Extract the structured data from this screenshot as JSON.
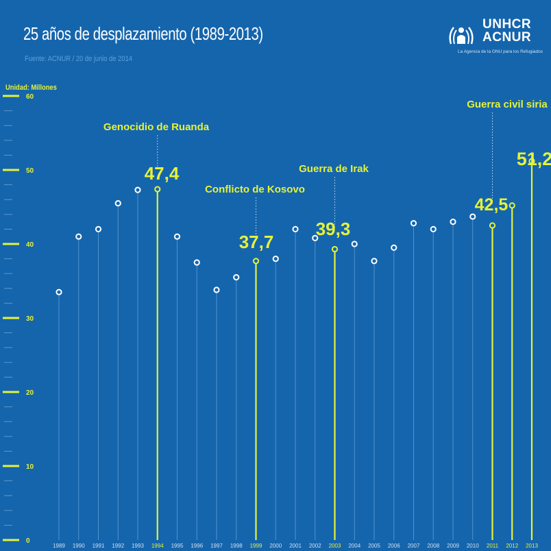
{
  "header": {
    "title": "25 años de desplazamiento (1989-2013)",
    "subtitle": "Fuente: ACNUR / 20 de junio de 2014",
    "unit_label": "Unidad: Millones"
  },
  "logo": {
    "line1": "UNHCR",
    "line2": "ACNUR",
    "tagline": "La Agencia de la ONU para los Refugiados"
  },
  "colors": {
    "background": "#1565ad",
    "highlight": "#e6f238",
    "stem": "#6fa6d8",
    "white": "#ffffff"
  },
  "chart_data": {
    "type": "scatter",
    "title": "25 años de desplazamiento (1989-2013)",
    "ylabel": "Unidad: Millones",
    "ylim": [
      0,
      60
    ],
    "yticks": [
      0,
      10,
      20,
      30,
      40,
      50,
      60
    ],
    "x": [
      "1989",
      "1990",
      "1991",
      "1992",
      "1993",
      "1994",
      "1995",
      "1996",
      "1997",
      "1998",
      "1999",
      "2000",
      "2001",
      "2002",
      "2003",
      "2004",
      "2005",
      "2006",
      "2007",
      "2008",
      "2009",
      "2010",
      "2011",
      "2012",
      "2013"
    ],
    "values": [
      33.5,
      41.0,
      42.0,
      45.5,
      47.3,
      47.4,
      41.0,
      37.5,
      33.8,
      35.5,
      37.7,
      38.0,
      42.0,
      40.8,
      39.3,
      40.0,
      37.7,
      39.5,
      42.8,
      42.0,
      43.0,
      43.7,
      42.5,
      45.2,
      51.2
    ],
    "highlighted": [
      "1994",
      "1999",
      "2003",
      "2011",
      "2012",
      "2013"
    ],
    "data_labels": [
      {
        "year": "1994",
        "text": "47,4"
      },
      {
        "year": "1999",
        "text": "37,7"
      },
      {
        "year": "2003",
        "text": "39,3"
      },
      {
        "year": "2011",
        "text": "42,5"
      },
      {
        "year": "2013",
        "text": "51,2"
      }
    ],
    "annotations": [
      {
        "year": "1994",
        "text": "Genocidio de Ruanda"
      },
      {
        "year": "1999",
        "text": "Conflicto de Kosovo"
      },
      {
        "year": "2003",
        "text": "Guerra de Irak"
      },
      {
        "year": "2011",
        "text": "Guerra civil siria"
      }
    ]
  }
}
